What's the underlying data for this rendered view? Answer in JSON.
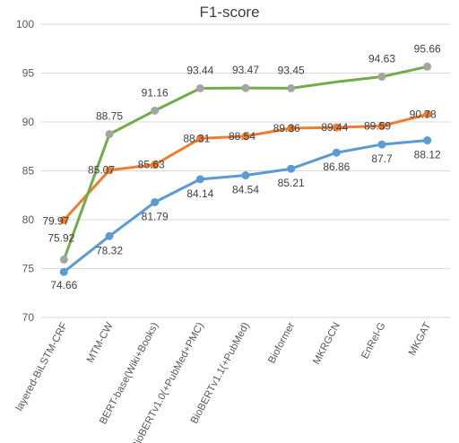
{
  "chart_data": {
    "type": "line",
    "title": "F1-score",
    "xlabel": "",
    "ylabel": "",
    "ylim": [
      70,
      100
    ],
    "yticks": [
      70,
      75,
      80,
      85,
      90,
      95,
      100
    ],
    "grid": true,
    "legend": "none",
    "categories": [
      "layered-BiLSTM-CRF",
      "MTM-CW",
      "BERT-base(Wiki+Books)",
      "BioBERTv1.0(+PubMed+PMC)",
      "BioBERTv1.1(+PubMed)",
      "Bioformer",
      "MKRGCN",
      "EnRel-G",
      "MKGAT"
    ],
    "series": [
      {
        "color": "#5B9BD5",
        "values": [
          74.66,
          78.32,
          81.79,
          84.14,
          84.54,
          85.21,
          86.86,
          87.7,
          88.12
        ],
        "labels": [
          "74.66",
          "78.32",
          "81.79",
          "84.14",
          "84.54",
          "85.21",
          "86.86",
          "87.7",
          "88.12"
        ]
      },
      {
        "color": "#ED7D31",
        "values": [
          79.97,
          85.07,
          85.63,
          88.31,
          88.54,
          89.36,
          89.44,
          89.59,
          90.78
        ],
        "labels": [
          "79.97",
          "85.07",
          "85.63",
          "88.31",
          "88.54",
          "89.36",
          "89.44",
          "89.59",
          "90.78"
        ]
      },
      {
        "color": "#70AD47",
        "marker_color": "#A5A5A5",
        "values": [
          75.92,
          88.75,
          91.16,
          93.44,
          93.47,
          93.45,
          94.1,
          94.63,
          95.66
        ],
        "labels": [
          "75.92",
          "88.75",
          "91.16",
          "93.44",
          "93.47",
          "93.45",
          null,
          "94.63",
          "95.66"
        ]
      }
    ]
  }
}
